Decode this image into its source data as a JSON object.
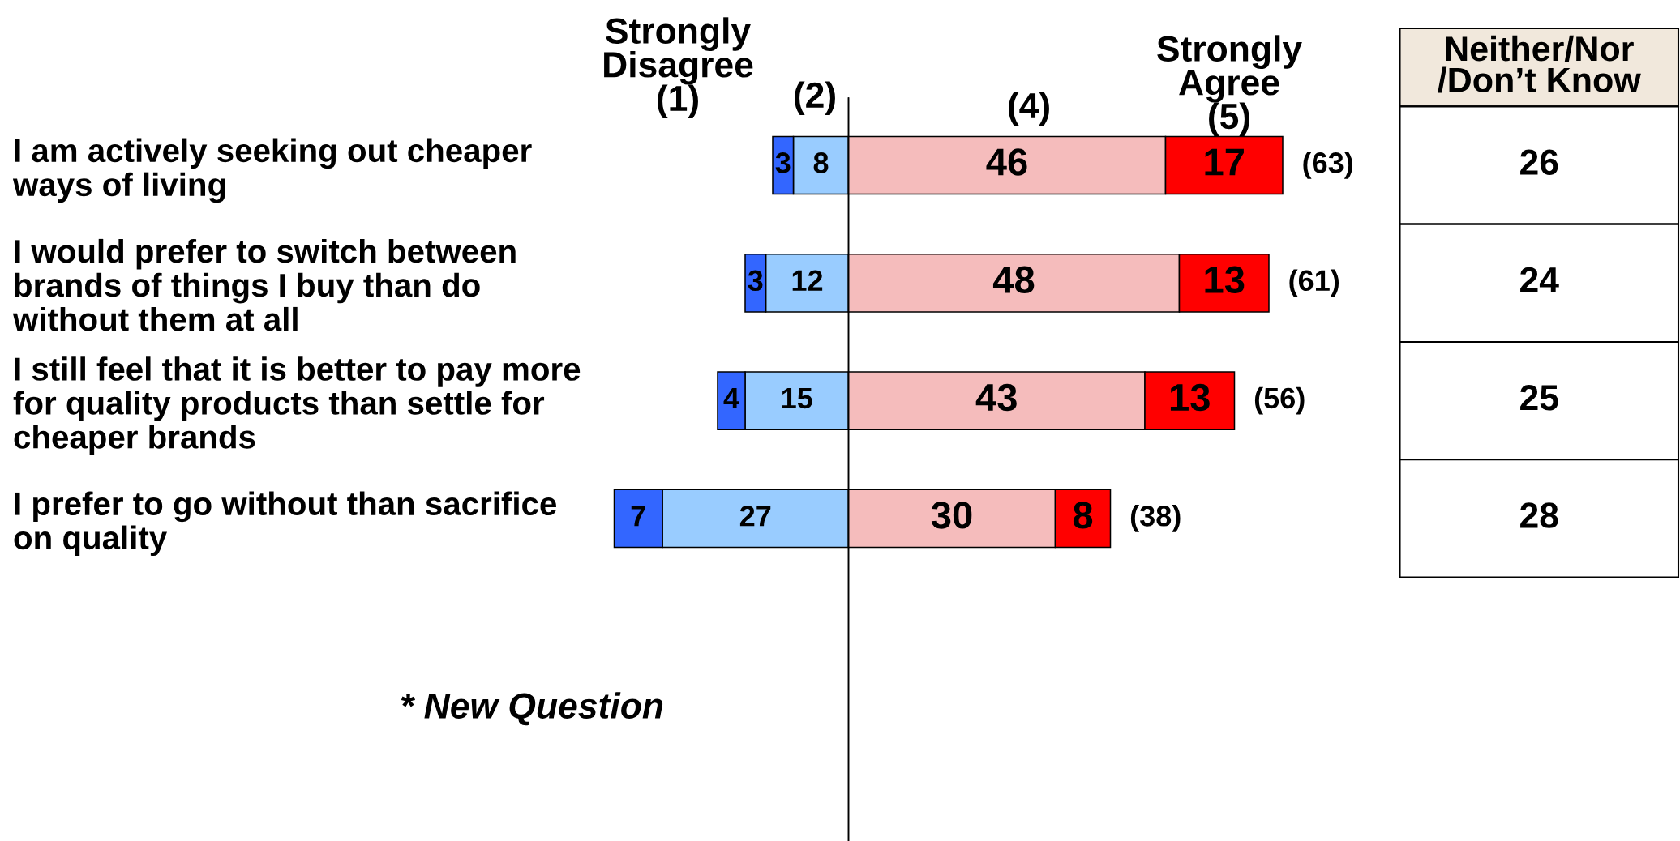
{
  "chart_data": [
    {
      "type": "bar",
      "orientation": "horizontal",
      "stacked": true,
      "categories": [
        "I am actively seeking out cheaper\nways of living",
        "I would prefer to switch between\nbrands of things I buy than do\nwithout them at all",
        "I still feel that it is better to pay more\nfor quality products than settle for\ncheaper brands",
        "I prefer to go without than sacrifice\non quality"
      ],
      "series": [
        {
          "name": "(2)",
          "color": "#99ccff",
          "values": [
            8,
            12,
            15,
            27
          ]
        },
        {
          "name": "Strongly\nDisagree\n(1)",
          "color": "#3366ff",
          "values": [
            3,
            3,
            4,
            7
          ]
        }
      ],
      "xlim": [
        34,
        0
      ],
      "data_labels": true,
      "tick_labels": "y",
      "annotations": [
        "* New Question"
      ]
    },
    {
      "type": "bar",
      "orientation": "horizontal",
      "stacked": true,
      "categories": [
        null,
        null,
        null,
        null
      ],
      "series": [
        {
          "name": "(4)",
          "color": "#f5bcbc",
          "values": [
            46,
            48,
            43,
            30
          ]
        },
        {
          "name": "Strongly\nAgree\n(5)",
          "color": "#ff0000",
          "values": [
            17,
            13,
            13,
            8
          ]
        }
      ],
      "xlim": [
        0,
        63
      ],
      "data_labels": true,
      "totals": [
        "(63)",
        "(61)",
        "(56)",
        "(38)"
      ],
      "tick_labels": false
    },
    {
      "type": "other",
      "title": "Neither/Nor\n/Don’t Know",
      "categories": [
        null,
        null,
        null,
        null
      ],
      "values": [
        26,
        24,
        25,
        28
      ],
      "data_labels": true
    }
  ]
}
